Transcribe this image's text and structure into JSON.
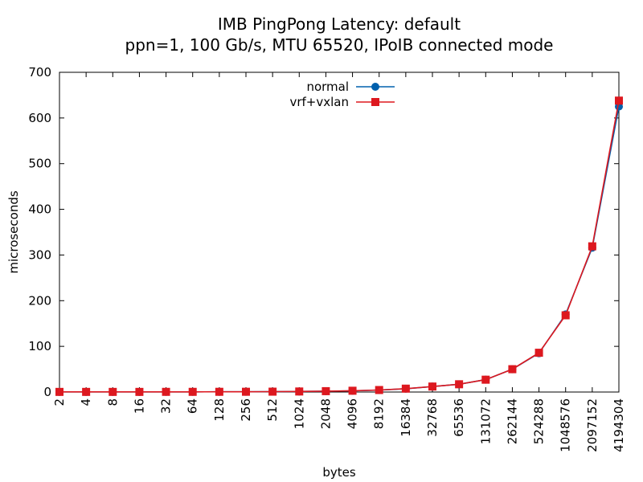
{
  "chart_data": {
    "type": "line",
    "title": "IMB PingPong Latency: default",
    "subtitle": "ppn=1, 100 Gb/s, MTU 65520, IPoIB connected mode",
    "xlabel": "bytes",
    "ylabel": "microseconds",
    "ylim": [
      0,
      700
    ],
    "yticks": [
      0,
      100,
      200,
      300,
      400,
      500,
      600,
      700
    ],
    "grid": false,
    "legend_position": "top-center",
    "categories": [
      "2",
      "4",
      "8",
      "16",
      "32",
      "64",
      "128",
      "256",
      "512",
      "1024",
      "2048",
      "4096",
      "8192",
      "16384",
      "32768",
      "65536",
      "131072",
      "262144",
      "524288",
      "1048576",
      "2097152",
      "4194304"
    ],
    "series": [
      {
        "name": "normal",
        "color": "#0060ad",
        "marker": "circle",
        "values": [
          0.3,
          0.3,
          0.3,
          0.3,
          0.4,
          0.4,
          0.5,
          0.6,
          0.8,
          1.2,
          1.8,
          2.7,
          4.2,
          7.2,
          12,
          17,
          27,
          50,
          85,
          170,
          316,
          625
        ]
      },
      {
        "name": "vrf+vxlan",
        "color": "#dd181f",
        "marker": "square",
        "values": [
          0.3,
          0.3,
          0.3,
          0.3,
          0.4,
          0.4,
          0.5,
          0.6,
          0.8,
          1.2,
          1.9,
          2.8,
          4.4,
          7.4,
          12,
          17,
          27,
          50,
          86,
          168,
          319,
          638
        ]
      }
    ]
  }
}
